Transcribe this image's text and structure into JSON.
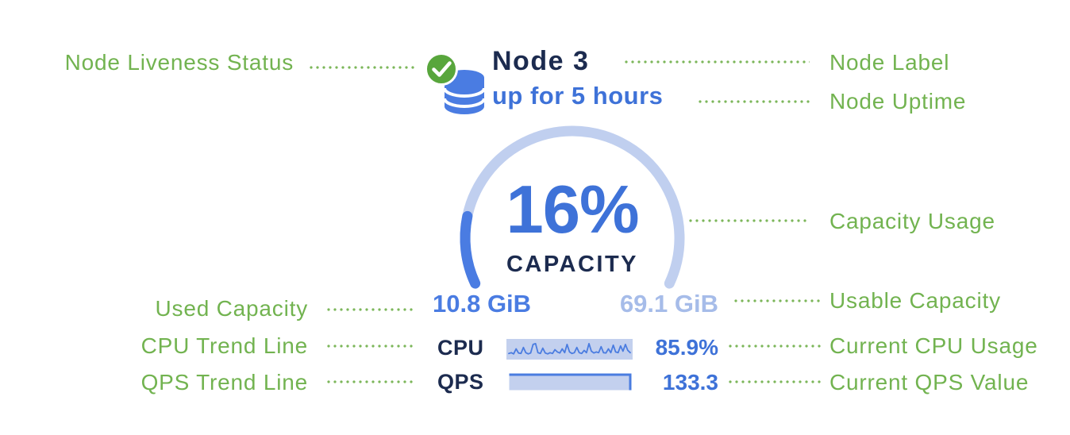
{
  "annotations": {
    "left": [
      {
        "label": "Node Liveness Status"
      },
      {
        "label": "Used Capacity"
      },
      {
        "label": "CPU Trend Line"
      },
      {
        "label": "QPS Trend Line"
      }
    ],
    "right": [
      {
        "label": "Node Label"
      },
      {
        "label": "Node Uptime"
      },
      {
        "label": "Capacity Usage"
      },
      {
        "label": "Usable Capacity"
      },
      {
        "label": "Current CPU Usage"
      },
      {
        "label": "Current QPS Value"
      }
    ]
  },
  "node": {
    "name": "Node 3",
    "uptime": "up for 5 hours",
    "liveness": "live",
    "capacity": {
      "percent_text": "16%",
      "percent_value": 16,
      "label": "CAPACITY",
      "used": "10.8 GiB",
      "usable": "69.1 GiB"
    },
    "cpu": {
      "label": "CPU",
      "value": "85.9%",
      "sparkline": [
        0.25,
        0.3,
        0.22,
        0.55,
        0.28,
        0.25,
        0.65,
        0.3,
        0.22,
        0.28,
        0.85,
        0.9,
        0.3,
        0.25,
        0.6,
        0.28,
        0.22,
        0.3,
        0.25,
        0.5,
        0.35,
        0.28,
        0.55,
        0.3,
        0.85,
        0.35,
        0.25,
        0.3,
        0.65,
        0.3,
        0.25,
        0.45,
        0.3,
        0.9,
        0.4,
        0.28,
        0.35,
        0.3,
        0.7,
        0.3,
        0.28,
        0.55,
        0.3,
        0.8,
        0.35,
        0.3,
        0.75,
        0.4,
        0.85,
        0.45,
        0.3
      ]
    },
    "qps": {
      "label": "QPS",
      "value": "133.3"
    }
  },
  "chart_data": [
    {
      "type": "gauge",
      "title": "CAPACITY",
      "value_percent": 16,
      "used": "10.8 GiB",
      "usable": "69.1 GiB",
      "arc_degrees": 230
    },
    {
      "type": "line",
      "name": "CPU trend sparkline",
      "current_value": "85.9%",
      "shape": "jittery baseline with repeated spikes"
    },
    {
      "type": "area",
      "name": "QPS trend",
      "current_value": 133.3,
      "shape": "flat at maximum across full width"
    }
  ],
  "colors": {
    "annotation_green": "#72b350",
    "liveness_green": "#58a63c",
    "navy": "#1c2b4f",
    "bright_blue": "#3e72d8",
    "icon_blue": "#4a7ce2",
    "gauge_track": "#c0cfef",
    "gauge_fill": "#4a7ce2",
    "usable_light_blue": "#a6bce9",
    "spark_bg": "#c3d0ee",
    "spark_line": "#4a7ce0"
  }
}
